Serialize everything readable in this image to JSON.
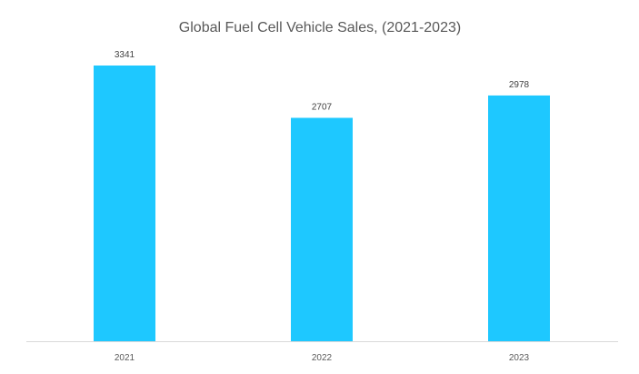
{
  "chart_data": {
    "type": "bar",
    "title": "Global Fuel Cell Vehicle Sales, (2021-2023)",
    "categories": [
      "2021",
      "2022",
      "2023"
    ],
    "values": [
      3341,
      2707,
      2978
    ],
    "xlabel": "",
    "ylabel": "",
    "ylim": [
      0,
      3341
    ],
    "grid": false,
    "bar_color": "#1ec8ff",
    "axis_color": "#d9d9d9"
  }
}
